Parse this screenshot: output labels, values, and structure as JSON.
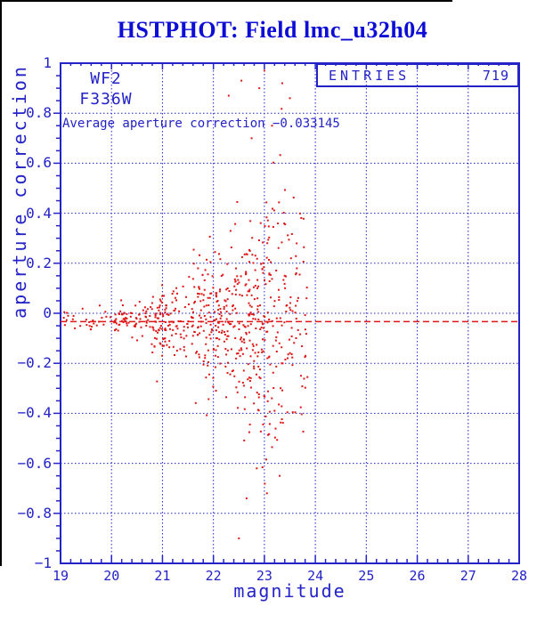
{
  "window": {
    "title": "HSTPHOT: Field lmc_u32h04"
  },
  "colors": {
    "title_blue": "#0d0dd6",
    "plot_blue": "#2323c8",
    "point_red": "#e01616",
    "black": "#000000"
  },
  "stats_box": {
    "label": "ENTRIES",
    "value": "719"
  },
  "annotations": {
    "camera": "WF2",
    "filter": "F336W",
    "average_text": "Average aperture correction −0.033145"
  },
  "chart_data": {
    "type": "scatter",
    "title": "HSTPHOT: Field lmc_u32h04",
    "xlabel": "magnitude",
    "ylabel": "aperture correction",
    "xlim": [
      19,
      28
    ],
    "ylim": [
      -1,
      1
    ],
    "grid": true,
    "grid_style": "dotted",
    "xticks": [
      19,
      20,
      21,
      22,
      23,
      24,
      25,
      26,
      27,
      28
    ],
    "xtick_labels": [
      "19",
      "20",
      "21",
      "22",
      "23",
      "24",
      "25",
      "26",
      "27",
      "28"
    ],
    "yticks": [
      1,
      0.8,
      0.6,
      0.4,
      0.2,
      0,
      -0.2,
      -0.4,
      -0.6,
      -0.8,
      -1
    ],
    "ytick_labels": [
      "1",
      "0.8",
      "0.6",
      "0.4",
      "0.2",
      "0",
      "−0.2",
      "−0.4",
      "−0.6",
      "−0.8",
      "−1"
    ],
    "x_minor_step": 0.2,
    "y_minor_step": 0.05,
    "entries": 719,
    "average_aperture_correction": -0.033145,
    "reference_line_y": -0.033145,
    "reference_line_style": "dashed",
    "point_color": "#e01616",
    "distribution": {
      "comment": "719 points fan out: tight near the mean at bright magnitudes, wide spread near mag 23, cutoff ~23.85",
      "mean": -0.033145,
      "clip": [
        -0.78,
        0.97
      ],
      "seed": 71904,
      "bands": [
        {
          "x0": 19.05,
          "x1": 20.0,
          "n": 28,
          "sigma": 0.022
        },
        {
          "x0": 20.0,
          "x1": 20.8,
          "n": 70,
          "sigma": 0.04
        },
        {
          "x0": 20.8,
          "x1": 21.6,
          "n": 120,
          "sigma": 0.07
        },
        {
          "x0": 21.6,
          "x1": 22.4,
          "n": 170,
          "sigma": 0.13
        },
        {
          "x0": 22.4,
          "x1": 23.0,
          "n": 159,
          "sigma": 0.2
        },
        {
          "x0": 23.0,
          "x1": 23.55,
          "n": 118,
          "sigma": 0.26
        },
        {
          "x0": 23.55,
          "x1": 23.85,
          "n": 41,
          "sigma": 0.28
        }
      ],
      "outlier_points": [
        [
          22.55,
          0.93
        ],
        [
          23.0,
          0.97
        ],
        [
          22.9,
          0.9
        ],
        [
          23.35,
          0.92
        ],
        [
          22.3,
          0.87
        ],
        [
          23.15,
          0.75
        ],
        [
          22.75,
          0.7
        ],
        [
          23.5,
          0.86
        ],
        [
          22.65,
          -0.74
        ],
        [
          23.05,
          -0.72
        ],
        [
          23.3,
          -0.65
        ],
        [
          22.85,
          -0.62
        ],
        [
          22.5,
          -0.9
        ]
      ]
    }
  }
}
